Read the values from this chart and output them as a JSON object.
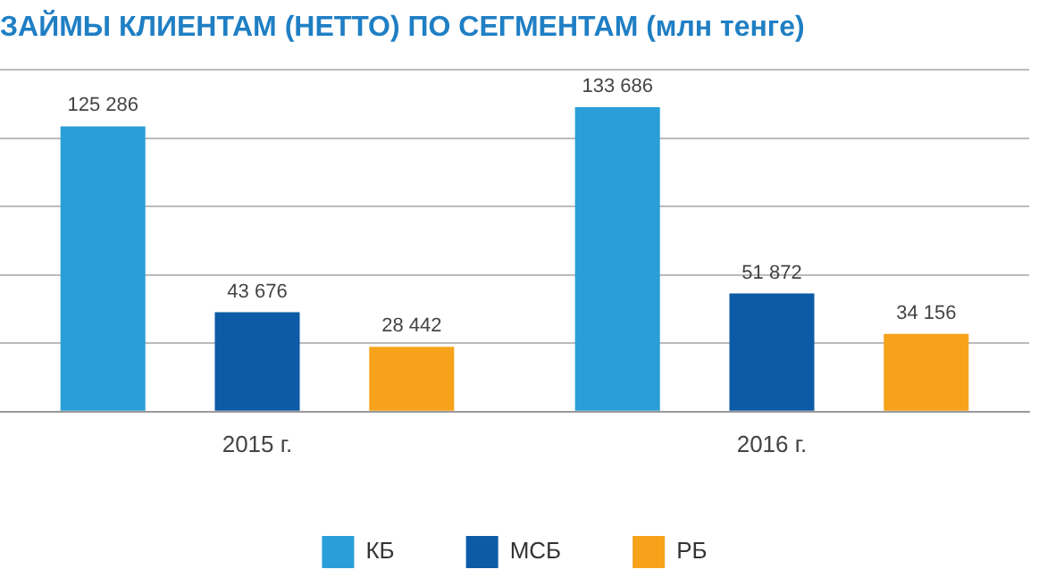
{
  "chart_data": {
    "type": "bar",
    "title": "ЗАЙМЫ КЛИЕНТАМ (НЕТТО) ПО СЕГМЕНТАМ (млн тенге)",
    "categories": [
      "2015 г.",
      "2016 г."
    ],
    "series": [
      {
        "name": "КБ",
        "color": "#2a9ed8",
        "values": [
          125286,
          133686
        ],
        "value_labels": [
          "125 286",
          "133 686"
        ]
      },
      {
        "name": "МСБ",
        "color": "#0d5ba6",
        "values": [
          43676,
          51872
        ],
        "value_labels": [
          "43 676",
          "51 872"
        ]
      },
      {
        "name": "РБ",
        "color": "#f7a21b",
        "values": [
          28442,
          34156
        ],
        "value_labels": [
          "28 442",
          "34 156"
        ]
      }
    ],
    "ylim": [
      0,
      150000
    ],
    "yticks": [
      {
        "value": 0,
        "label": null
      },
      {
        "value": 30000,
        "label": null
      },
      {
        "value": 60000,
        "label": null
      },
      {
        "value": 90000,
        "label": null
      },
      {
        "value": 120000,
        "label": null
      },
      {
        "value": 150000,
        "label": null
      }
    ],
    "tick_labels": "x",
    "grid": "y",
    "legend": "bottom"
  }
}
